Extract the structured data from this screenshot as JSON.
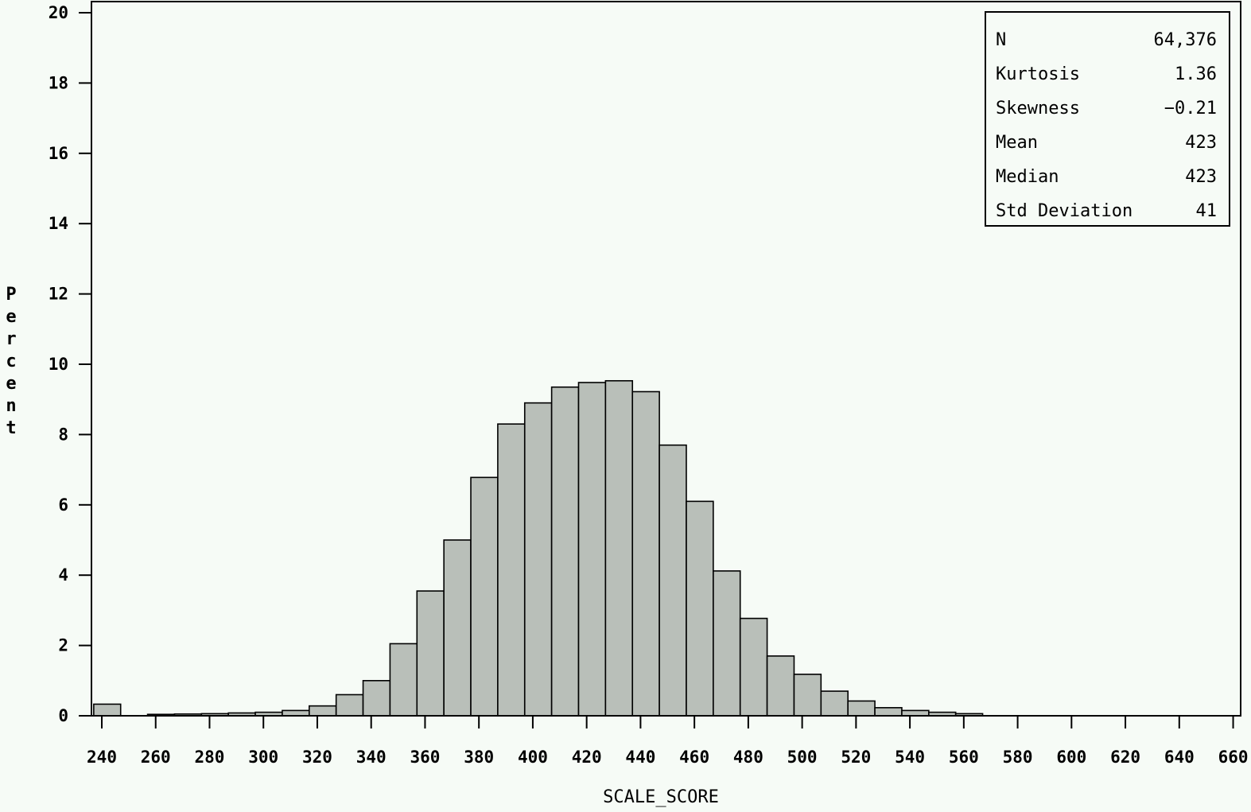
{
  "chart_data": {
    "type": "bar",
    "xlabel": "SCALE_SCORE",
    "ylabel": "Percent",
    "xlim": [
      240,
      660
    ],
    "ylim": [
      0,
      20
    ],
    "bin_width": 10,
    "x_ticks": [
      240,
      260,
      280,
      300,
      320,
      340,
      360,
      380,
      400,
      420,
      440,
      460,
      480,
      500,
      520,
      540,
      560,
      580,
      600,
      620,
      640,
      660
    ],
    "y_ticks": [
      0,
      2,
      4,
      6,
      8,
      10,
      12,
      14,
      16,
      18,
      20
    ],
    "bins": [
      {
        "start": 237,
        "value": 0.33
      },
      {
        "start": 257,
        "value": 0.04
      },
      {
        "start": 267,
        "value": 0.05
      },
      {
        "start": 277,
        "value": 0.06
      },
      {
        "start": 287,
        "value": 0.08
      },
      {
        "start": 297,
        "value": 0.1
      },
      {
        "start": 307,
        "value": 0.15
      },
      {
        "start": 317,
        "value": 0.28
      },
      {
        "start": 327,
        "value": 0.6
      },
      {
        "start": 337,
        "value": 1.0
      },
      {
        "start": 347,
        "value": 2.05
      },
      {
        "start": 357,
        "value": 3.55
      },
      {
        "start": 367,
        "value": 5.0
      },
      {
        "start": 377,
        "value": 6.78
      },
      {
        "start": 387,
        "value": 8.3
      },
      {
        "start": 397,
        "value": 8.9
      },
      {
        "start": 407,
        "value": 9.35
      },
      {
        "start": 417,
        "value": 9.48
      },
      {
        "start": 427,
        "value": 9.53
      },
      {
        "start": 437,
        "value": 9.22
      },
      {
        "start": 447,
        "value": 7.7
      },
      {
        "start": 457,
        "value": 6.1
      },
      {
        "start": 467,
        "value": 4.12
      },
      {
        "start": 477,
        "value": 2.77
      },
      {
        "start": 487,
        "value": 1.7
      },
      {
        "start": 497,
        "value": 1.18
      },
      {
        "start": 507,
        "value": 0.7
      },
      {
        "start": 517,
        "value": 0.42
      },
      {
        "start": 527,
        "value": 0.23
      },
      {
        "start": 537,
        "value": 0.15
      },
      {
        "start": 547,
        "value": 0.1
      },
      {
        "start": 557,
        "value": 0.06
      }
    ],
    "stats": [
      {
        "label": "N",
        "value": "64,376"
      },
      {
        "label": "Kurtosis",
        "value": "1.36"
      },
      {
        "label": "Skewness",
        "value": "−0.21"
      },
      {
        "label": "Mean",
        "value": "423"
      },
      {
        "label": "Median",
        "value": "423"
      },
      {
        "label": "Std Deviation",
        "value": "41"
      }
    ],
    "colors": {
      "background": "#f6fbf6",
      "bar_fill": "#b9bfb9",
      "bar_stroke": "#000000"
    }
  }
}
